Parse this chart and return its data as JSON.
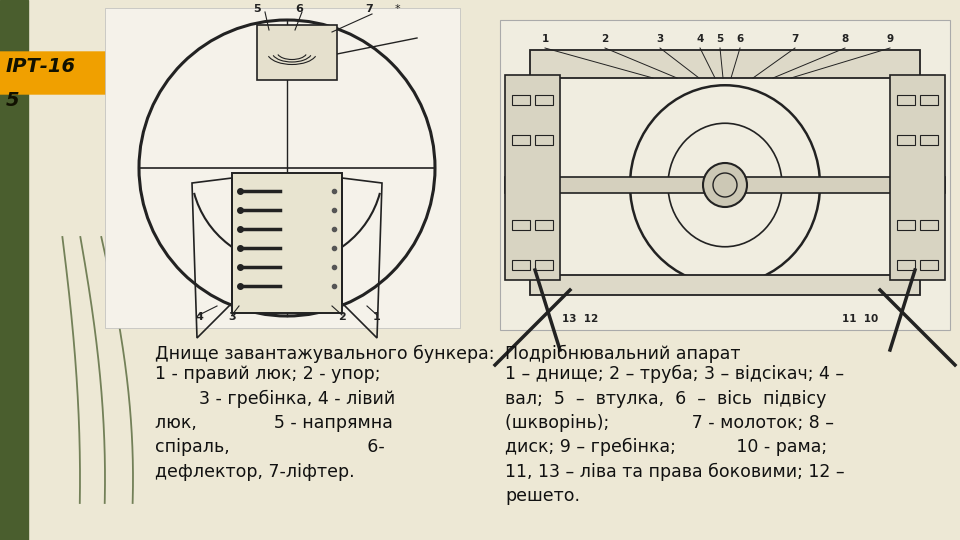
{
  "bg_color": "#ede8d5",
  "left_stripe_color": "#4a5e2e",
  "title_badge_color": "#f0a000",
  "title_line1": "ІРТ-16",
  "title_line2": "5",
  "title_text_color": "#111100",
  "left_caption_title": "Днище завантажувального бункера:",
  "left_caption_body": "1 - правий люк; 2 - упор;\n        3 - гребінка, 4 - лівий\nлюк,              5 - напрямна\nспіраль,                         6-\nдефлектор, 7-ліфтер.",
  "right_caption_title": "Подрібнювальний апарат",
  "right_caption_body": "1 – днище; 2 – труба; 3 – відсікач; 4 –\nвал;  5  –  втулка,  6  –  вісь  підвісу\n(шкворінь);               7 - молоток; 8 –\nдиск; 9 – гребінка;           10 - рама;\n11, 13 – ліва та права боковими; 12 –\nрешето.",
  "caption_color": "#111111",
  "caption_fontsize": 12.5,
  "img1_bg": "#f5f2ea",
  "img2_bg": "#f0ede0",
  "line_color": "#222222",
  "line_color2": "#555555"
}
